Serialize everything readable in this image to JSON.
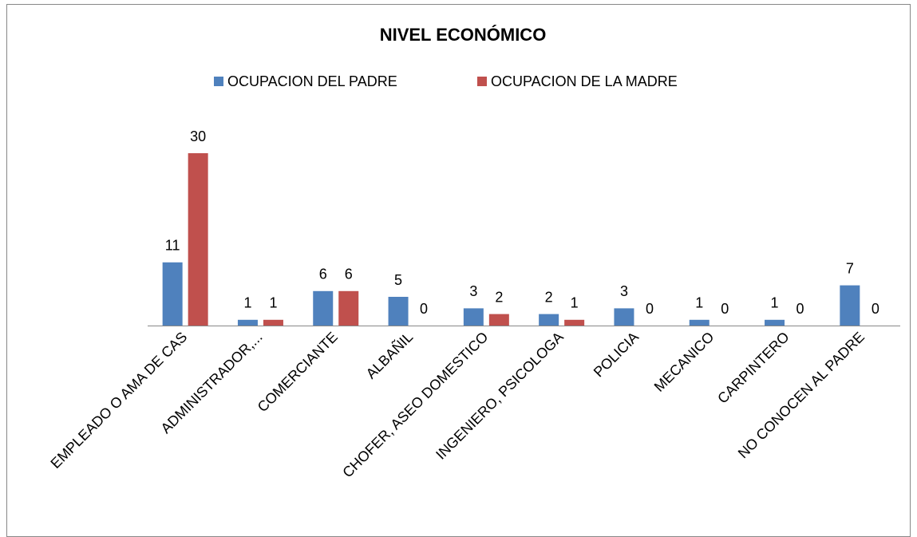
{
  "chart_data": {
    "type": "bar",
    "title": "NIVEL ECONÓMICO",
    "categories": [
      "EMPLEADO O AMA DE CAS",
      "ADMINISTRADOR,...",
      "COMERCIANTE",
      "ALBAÑIL",
      "CHOFER, ASEO DOMESTICO",
      "INGENIERO, PSICOLOGA",
      "POLICIA",
      "MECANICO",
      "CARPINTERO",
      "NO CONOCEN AL PADRE"
    ],
    "series": [
      {
        "name": "OCUPACION DEL PADRE",
        "color": "#4f81bd",
        "values": [
          11,
          1,
          6,
          5,
          3,
          2,
          3,
          1,
          1,
          7
        ]
      },
      {
        "name": "OCUPACION DE LA MADRE",
        "color": "#c0504d",
        "values": [
          30,
          1,
          6,
          0,
          2,
          1,
          0,
          0,
          0,
          0
        ]
      }
    ],
    "legend": "top"
  }
}
